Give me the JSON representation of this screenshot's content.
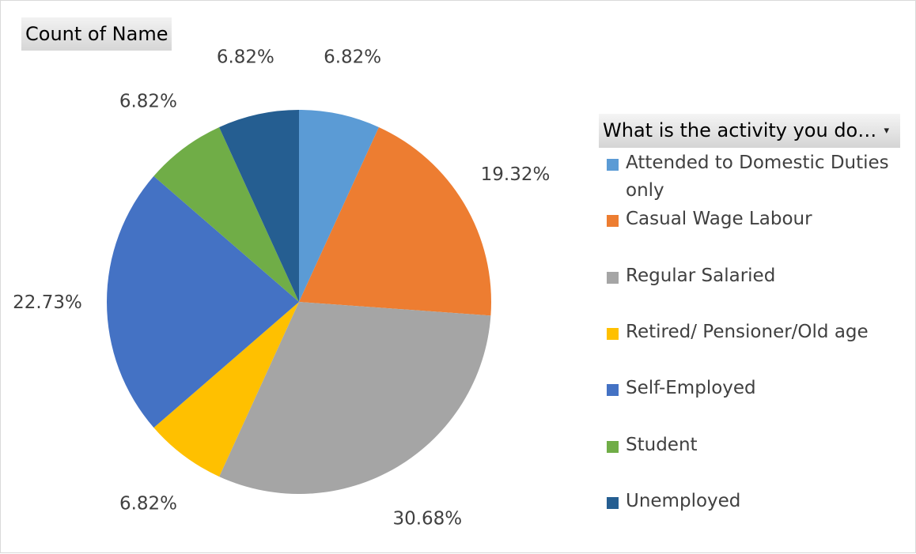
{
  "field_button": {
    "label": "Count of Name"
  },
  "legend": {
    "header": "What is the activity you do…",
    "dropdown_glyph": "▾"
  },
  "chart_data": {
    "type": "pie",
    "title": "",
    "categories": [
      "Attended to Domestic Duties only",
      "Casual Wage Labour",
      "Regular Salaried",
      "Retired/ Pensioner/Old age",
      "Self-Employed",
      "Student",
      "Unemployed"
    ],
    "values": [
      6.82,
      19.32,
      30.68,
      6.82,
      22.73,
      6.82,
      6.82
    ],
    "labels": [
      "6.82%",
      "19.32%",
      "30.68%",
      "6.82%",
      "22.73%",
      "6.82%",
      "6.82%"
    ],
    "colors": [
      "#5b9bd5",
      "#ed7d31",
      "#a5a5a5",
      "#ffc000",
      "#4472c4",
      "#70ad47",
      "#255e91"
    ],
    "legend_position": "right"
  }
}
